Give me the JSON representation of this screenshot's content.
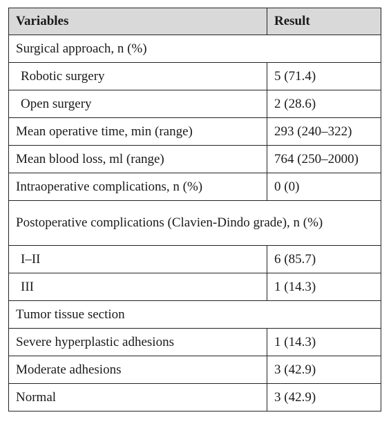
{
  "header": {
    "variables": "Variables",
    "result": "Result"
  },
  "rows": [
    {
      "label": "Surgical approach, n (%)",
      "value": "",
      "section": true
    },
    {
      "label": "Robotic surgery",
      "value": "5 (71.4)",
      "indent": true
    },
    {
      "label": "Open surgery",
      "value": "2 (28.6)",
      "indent": true
    },
    {
      "label": "Mean operative time, min (range)",
      "value": "293 (240–322)"
    },
    {
      "label": "Mean blood loss, ml (range)",
      "value": "764 (250–2000)"
    },
    {
      "label": "Intraoperative complications, n (%)",
      "value": "0 (0)"
    },
    {
      "label": "Postoperative complications (Clavien-Dindo grade), n (%)",
      "value": "",
      "section": true
    },
    {
      "label": "I–II",
      "value": "6 (85.7)",
      "indent": true
    },
    {
      "label": "III",
      "value": "1 (14.3)",
      "indent": true
    },
    {
      "label": "Tumor tissue section",
      "value": "",
      "section": true
    },
    {
      "label": "Severe hyperplastic adhesions",
      "value": "1 (14.3)"
    },
    {
      "label": "Moderate adhesions",
      "value": "3 (42.9)"
    },
    {
      "label": "Normal",
      "value": "3 (42.9)"
    }
  ]
}
